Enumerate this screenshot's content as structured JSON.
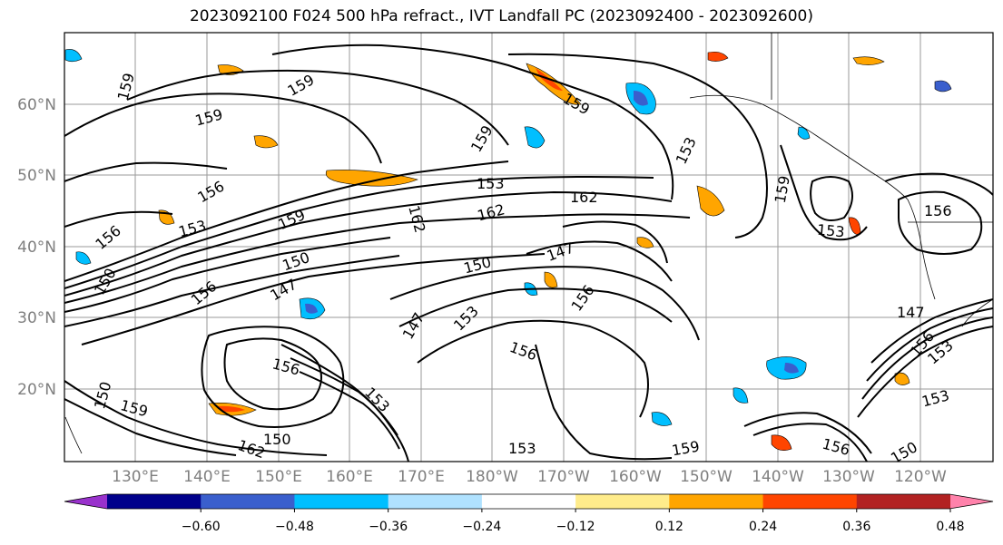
{
  "title": "2023092100 F024 500 hPa refract., IVT Landfall PC (2023092400 - 2023092600)",
  "lat_labels": [
    "60°N",
    "50°N",
    "40°N",
    "30°N",
    "20°N"
  ],
  "lon_labels": [
    "130°E",
    "140°E",
    "150°E",
    "160°E",
    "170°E",
    "180°W",
    "170°W",
    "160°W",
    "150°W",
    "140°W",
    "130°W",
    "120°W"
  ],
  "colorbar": {
    "colors": [
      "#9932cc",
      "#00008b",
      "#3a5fcd",
      "#00bfff",
      "#b0e2ff",
      "#ffffff",
      "#ffec8b",
      "#ffa500",
      "#ff4500",
      "#b22222",
      "#ff82ab"
    ],
    "tick_labels": [
      "−0.60",
      "−0.48",
      "−0.36",
      "−0.24",
      "−0.12",
      "0.12",
      "0.24",
      "0.36",
      "0.48",
      "0.60"
    ]
  },
  "contour_labels": [
    "159",
    "159",
    "159",
    "159",
    "153",
    "162",
    "162",
    "156",
    "153",
    "159",
    "153",
    "156",
    "150",
    "147",
    "150",
    "153",
    "156",
    "147",
    "156",
    "156",
    "150",
    "159",
    "147",
    "153",
    "150",
    "159",
    "156",
    "153",
    "156",
    "150",
    "153",
    "153",
    "156",
    "147",
    "156",
    "162",
    "162",
    "159",
    "159",
    "153",
    "150"
  ]
}
